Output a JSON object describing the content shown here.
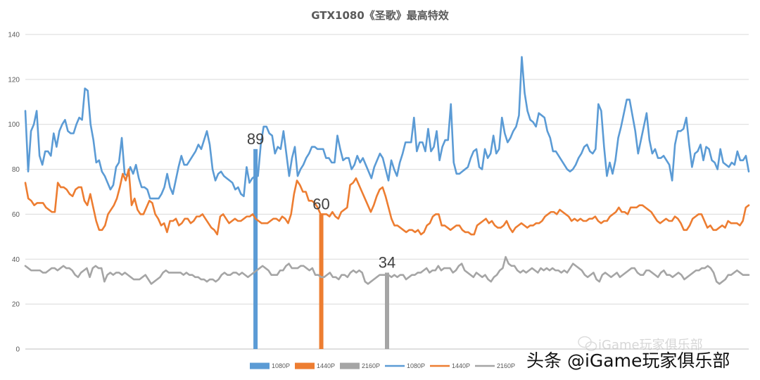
{
  "chart_data": {
    "type": "line",
    "title": "GTX1080《圣歌》最高特效",
    "xlabel": "",
    "ylabel": "",
    "ylim": [
      0,
      140
    ],
    "yticks": [
      0,
      20,
      40,
      60,
      80,
      100,
      120,
      140
    ],
    "grid": true,
    "legend_position": "bottom",
    "bar_series": [
      {
        "name": "1080P",
        "value": 89,
        "color": "#5b9bd5"
      },
      {
        "name": "1440P",
        "value": 60,
        "color": "#ed7d31"
      },
      {
        "name": "2160P",
        "value": 34,
        "color": "#a5a5a5"
      }
    ],
    "series": [
      {
        "name": "1080P",
        "color": "#5b9bd5",
        "values": [
          106,
          79,
          97,
          100,
          106,
          86,
          82,
          88,
          88,
          86,
          96,
          90,
          97,
          100,
          102,
          97,
          96,
          96,
          100,
          103,
          102,
          116,
          115,
          100,
          93,
          83,
          84,
          79,
          77,
          74,
          71,
          73,
          81,
          83,
          94,
          78,
          77,
          81,
          78,
          82,
          76,
          72,
          72,
          71,
          67,
          67,
          67,
          67,
          69,
          72,
          78,
          72,
          69,
          75,
          81,
          86,
          82,
          82,
          84,
          86,
          88,
          91,
          89,
          93,
          97,
          91,
          80,
          75,
          78,
          79,
          77,
          76,
          75,
          74,
          71,
          72,
          69,
          68,
          81,
          74,
          76,
          77,
          77,
          91,
          99,
          99,
          96,
          95,
          87,
          90,
          89,
          97,
          87,
          77,
          85,
          90,
          77,
          80,
          82,
          85,
          87,
          90,
          90,
          89,
          89,
          89,
          85,
          85,
          83,
          83,
          95,
          89,
          84,
          85,
          85,
          80,
          82,
          86,
          83,
          85,
          82,
          79,
          76,
          81,
          84,
          87,
          85,
          80,
          75,
          84,
          80,
          77,
          83,
          87,
          92,
          92,
          92,
          103,
          88,
          92,
          92,
          88,
          98,
          88,
          90,
          97,
          84,
          90,
          93,
          93,
          109,
          83,
          78,
          78,
          79,
          80,
          81,
          85,
          88,
          89,
          81,
          80,
          89,
          85,
          87,
          95,
          87,
          89,
          103,
          96,
          92,
          94,
          97,
          99,
          104,
          130,
          114,
          106,
          102,
          101,
          99,
          105,
          104,
          103,
          97,
          94,
          88,
          88,
          86,
          84,
          82,
          80,
          79,
          80,
          82,
          85,
          87,
          90,
          91,
          88,
          87,
          89,
          109,
          106,
          90,
          77,
          83,
          78,
          84,
          94,
          99,
          105,
          111,
          111,
          104,
          97,
          87,
          93,
          99,
          105,
          93,
          87,
          89,
          85,
          85,
          86,
          84,
          82,
          75,
          91,
          97,
          97,
          98,
          103,
          91,
          81,
          87,
          88,
          91,
          84,
          90,
          89,
          84,
          83,
          80,
          89,
          83,
          82,
          81,
          83,
          82,
          88,
          84,
          84,
          86,
          79
        ]
      },
      {
        "name": "1440P",
        "color": "#ed7d31",
        "values": [
          74,
          67,
          66,
          64,
          65,
          65,
          65,
          63,
          62,
          61,
          61,
          74,
          72,
          72,
          71,
          69,
          68,
          71,
          72,
          72,
          66,
          64,
          69,
          63,
          57,
          53,
          53,
          55,
          60,
          62,
          64,
          67,
          72,
          78,
          75,
          80,
          64,
          67,
          62,
          60,
          60,
          63,
          66,
          65,
          60,
          58,
          55,
          56,
          52,
          57,
          57,
          58,
          55,
          56,
          58,
          58,
          56,
          57,
          59,
          59,
          60,
          58,
          56,
          54,
          53,
          51,
          59,
          60,
          58,
          56,
          57,
          58,
          57,
          57,
          58,
          59,
          59,
          60,
          58,
          57,
          56,
          56,
          56,
          57,
          58,
          58,
          57,
          59,
          58,
          56,
          60,
          69,
          75,
          73,
          70,
          70,
          66,
          66,
          65,
          63,
          60,
          60,
          60,
          59,
          61,
          59,
          58,
          61,
          62,
          63,
          73,
          74,
          76,
          73,
          70,
          67,
          64,
          61,
          64,
          68,
          71,
          72,
          68,
          63,
          58,
          55,
          55,
          54,
          53,
          52,
          53,
          53,
          52,
          53,
          51,
          52,
          55,
          56,
          59,
          60,
          60,
          55,
          55,
          54,
          53,
          54,
          55,
          55,
          53,
          52,
          52,
          51,
          51,
          55,
          56,
          57,
          58,
          56,
          57,
          55,
          54,
          54,
          55,
          57,
          54,
          52,
          54,
          55,
          56,
          55,
          54,
          55,
          55,
          56,
          56,
          57,
          59,
          60,
          61,
          61,
          60,
          62,
          61,
          60,
          59,
          57,
          58,
          57,
          58,
          57,
          57,
          58,
          58,
          59,
          57,
          56,
          57,
          57,
          59,
          60,
          61,
          63,
          61,
          61,
          60,
          63,
          63,
          63,
          64,
          64,
          63,
          62,
          61,
          59,
          57,
          56,
          57,
          58,
          57,
          57,
          59,
          58,
          56,
          53,
          53,
          55,
          58,
          59,
          60,
          60,
          57,
          54,
          55,
          53,
          53,
          54,
          55,
          54,
          57,
          56,
          56,
          56,
          55,
          57,
          63,
          64
        ]
      },
      {
        "name": "2160P",
        "color": "#a5a5a5",
        "values": [
          37,
          36,
          35,
          35,
          35,
          35,
          34,
          34,
          35,
          36,
          36,
          35,
          36,
          37,
          36,
          36,
          35,
          33,
          32,
          34,
          35,
          36,
          32,
          36,
          37,
          36,
          36,
          30,
          33,
          34,
          33,
          34,
          34,
          33,
          34,
          33,
          32,
          31,
          31,
          31,
          32,
          33,
          31,
          29,
          30,
          31,
          32,
          34,
          35,
          34,
          34,
          34,
          34,
          34,
          33,
          34,
          33,
          33,
          32,
          32,
          31,
          31,
          30,
          31,
          31,
          30,
          31,
          33,
          34,
          33,
          33,
          34,
          34,
          33,
          34,
          33,
          32,
          33,
          34,
          35,
          36,
          37,
          36,
          35,
          33,
          33,
          33,
          35,
          35,
          37,
          38,
          36,
          36,
          36,
          37,
          37,
          36,
          35,
          36,
          33,
          33,
          32,
          32,
          33,
          34,
          32,
          32,
          31,
          33,
          33,
          32,
          34,
          35,
          34,
          35,
          34,
          30,
          29,
          30,
          31,
          32,
          33,
          33,
          33,
          33,
          32,
          33,
          32,
          33,
          33,
          31,
          32,
          33,
          33,
          34,
          34,
          35,
          36,
          34,
          35,
          35,
          37,
          35,
          36,
          36,
          36,
          34,
          35,
          37,
          38,
          35,
          34,
          33,
          32,
          34,
          33,
          32,
          33,
          31,
          30,
          32,
          33,
          35,
          36,
          41,
          38,
          37,
          37,
          35,
          34,
          35,
          34,
          35,
          36,
          35,
          34,
          36,
          35,
          36,
          35,
          36,
          35,
          35,
          34,
          35,
          34,
          36,
          38,
          37,
          36,
          35,
          33,
          32,
          33,
          34,
          31,
          30,
          33,
          34,
          33,
          32,
          33,
          34,
          32,
          33,
          34,
          35,
          36,
          36,
          34,
          33,
          33,
          35,
          35,
          34,
          33,
          32,
          34,
          35,
          33,
          33,
          32,
          33,
          34,
          33,
          31,
          32,
          33,
          34,
          35,
          35,
          36,
          36,
          37,
          36,
          34,
          30,
          29,
          30,
          31,
          33,
          33,
          34,
          35,
          34,
          33,
          33,
          33
        ]
      }
    ]
  },
  "legend_items": [
    {
      "label": "1080P",
      "kind": "bar",
      "color": "#5b9bd5"
    },
    {
      "label": "1440P",
      "kind": "bar",
      "color": "#ed7d31"
    },
    {
      "label": "2160P",
      "kind": "bar",
      "color": "#a5a5a5"
    },
    {
      "label": "1080P",
      "kind": "line",
      "color": "#5b9bd5"
    },
    {
      "label": "1440P",
      "kind": "line",
      "color": "#ed7d31"
    },
    {
      "label": "2160P",
      "kind": "line",
      "color": "#a5a5a5"
    }
  ],
  "watermark": {
    "logo_text": "iGame玩家俱乐部",
    "credit_text": "头条 @iGame玩家俱乐部"
  }
}
